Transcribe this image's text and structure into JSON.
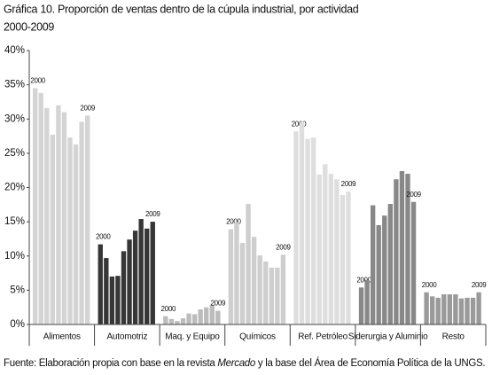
{
  "chart_data": {
    "type": "grouped_bar",
    "title": "Gráfica 10. Proporción de ventas dentro de la cúpula industrial, por actividad",
    "subtitle": "2000-2009",
    "year_labels": [
      "2000",
      "2009"
    ],
    "groups": [
      {
        "name": "Alimentos",
        "color": "#d4d4d4",
        "values": [
          34.5,
          33.8,
          31.6,
          27.7,
          32.0,
          31.0,
          27.3,
          26.3,
          29.6,
          30.5
        ]
      },
      {
        "name": "Automotriz",
        "color": "#363636",
        "values": [
          11.7,
          9.7,
          7.0,
          7.1,
          10.7,
          12.4,
          13.7,
          15.4,
          14.0,
          15.0
        ]
      },
      {
        "name": "Maq. y Equipo",
        "color": "#bcbcbc",
        "values": [
          1.2,
          0.8,
          0.5,
          0.9,
          1.6,
          1.5,
          2.2,
          2.5,
          2.9,
          2.0
        ]
      },
      {
        "name": "Químicos",
        "color": "#cecece",
        "values": [
          13.9,
          14.9,
          11.9,
          17.6,
          12.8,
          10.1,
          9.2,
          8.3,
          8.3,
          10.2
        ]
      },
      {
        "name": "Ref. Petróleo",
        "color": "#dedede",
        "values": [
          28.2,
          29.6,
          27.1,
          27.3,
          21.9,
          23.4,
          22.0,
          21.2,
          18.9,
          19.4
        ]
      },
      {
        "name": "Siderurgia y Aluminio",
        "color": "#888888",
        "values": [
          5.4,
          6.5,
          17.4,
          14.5,
          15.9,
          17.6,
          21.2,
          22.4,
          22.0,
          17.9
        ]
      },
      {
        "name": "Resto",
        "color": "#9a9a9a",
        "values": [
          4.7,
          4.1,
          3.9,
          4.4,
          4.4,
          4.4,
          3.8,
          3.9,
          3.9,
          4.7
        ]
      }
    ],
    "ylim": [
      0,
      40
    ],
    "yticks": [
      {
        "value": 0,
        "label": "0%"
      },
      {
        "value": 5,
        "label": "5%"
      },
      {
        "value": 10,
        "label": "10%"
      },
      {
        "value": 15,
        "label": "15%"
      },
      {
        "value": 20,
        "label": "20%"
      },
      {
        "value": 25,
        "label": "25%"
      },
      {
        "value": 30,
        "label": "30%"
      },
      {
        "value": 35,
        "label": "35%"
      },
      {
        "value": 40,
        "label": "40%"
      }
    ],
    "source_parts": [
      "Fuente: Elaboración propia con base en la revista ",
      "Mercado",
      " y la base del Área de Economía Política de la UNGS."
    ]
  }
}
